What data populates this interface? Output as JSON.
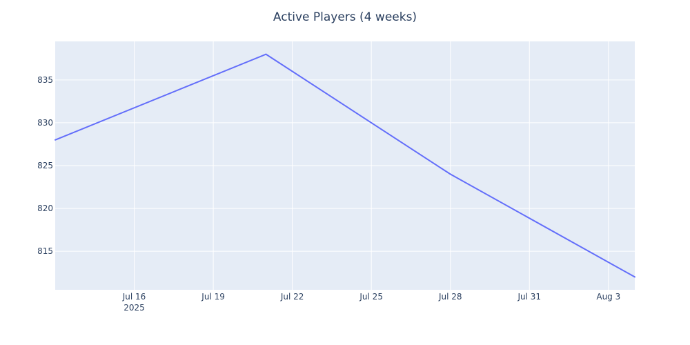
{
  "chart_data": {
    "type": "line",
    "title": "Active Players (4 weeks)",
    "xlabel": "",
    "ylabel": "",
    "x_range": [
      "2025-07-13",
      "2025-08-04"
    ],
    "ylim": [
      810.5,
      839.5
    ],
    "grid": true,
    "legend": "none",
    "colors": {
      "plot_bg": "#e5ecf6",
      "grid": "#ffffff",
      "line": "#636efa",
      "text": "#2a3f5f"
    },
    "x_ticks": [
      {
        "date": "2025-07-16",
        "label": "Jul 16",
        "sublabel": "2025"
      },
      {
        "date": "2025-07-19",
        "label": "Jul 19",
        "sublabel": ""
      },
      {
        "date": "2025-07-22",
        "label": "Jul 22",
        "sublabel": ""
      },
      {
        "date": "2025-07-25",
        "label": "Jul 25",
        "sublabel": ""
      },
      {
        "date": "2025-07-28",
        "label": "Jul 28",
        "sublabel": ""
      },
      {
        "date": "2025-07-31",
        "label": "Jul 31",
        "sublabel": ""
      },
      {
        "date": "2025-08-03",
        "label": "Aug 3",
        "sublabel": ""
      }
    ],
    "y_ticks": [
      {
        "value": 815,
        "label": "815"
      },
      {
        "value": 820,
        "label": "820"
      },
      {
        "value": 825,
        "label": "825"
      },
      {
        "value": 830,
        "label": "830"
      },
      {
        "value": 835,
        "label": "835"
      }
    ],
    "series": [
      {
        "x": [
          "2025-07-13",
          "2025-07-21",
          "2025-07-28",
          "2025-08-04"
        ],
        "values": [
          828,
          838,
          824,
          812
        ]
      }
    ]
  }
}
